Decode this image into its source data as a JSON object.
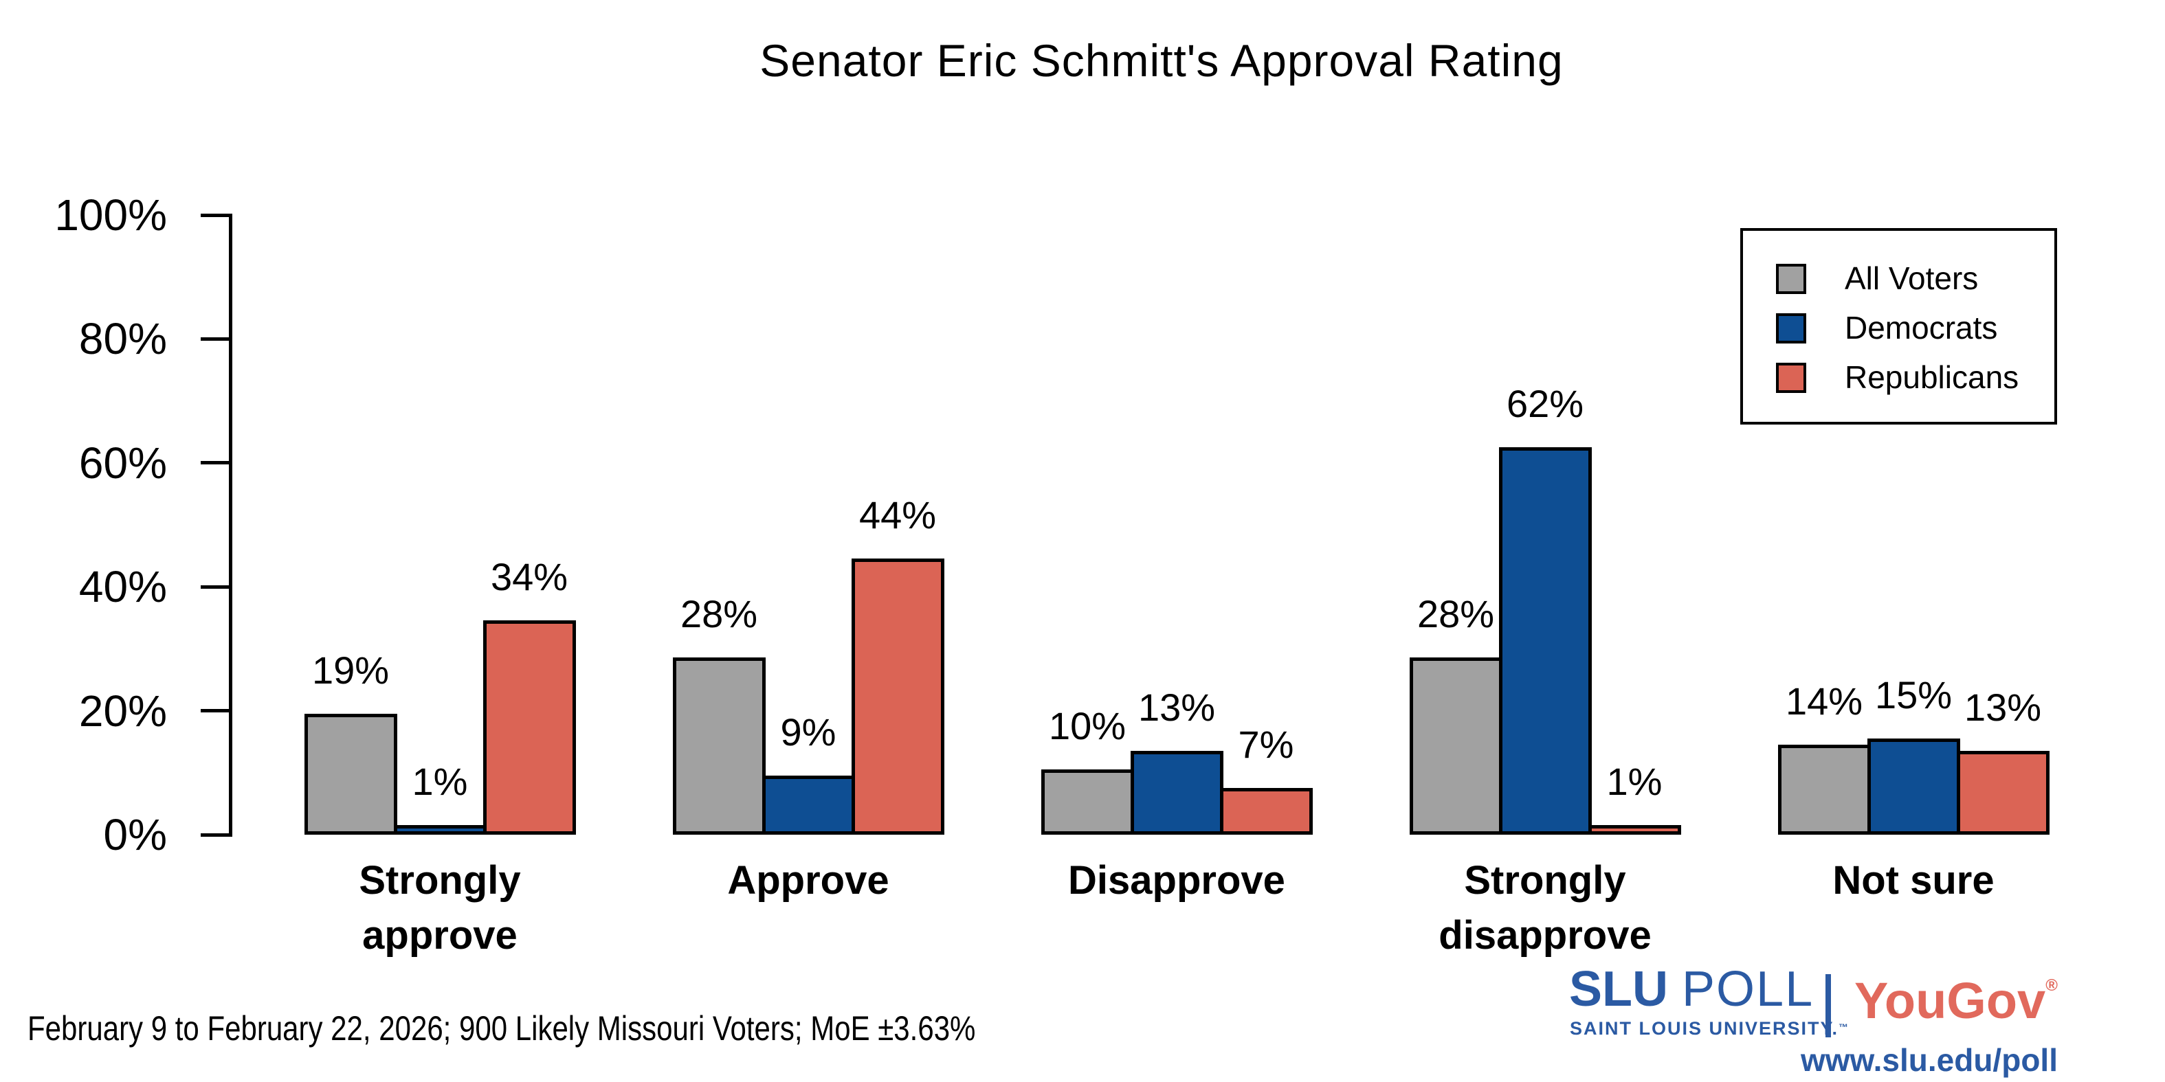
{
  "title": "Senator Eric Schmitt's Approval Rating",
  "chart_data": {
    "type": "bar",
    "title": "Senator Eric Schmitt's Approval Rating",
    "categories": [
      "Strongly approve",
      "Approve",
      "Disapprove",
      "Strongly disapprove",
      "Not sure"
    ],
    "category_display": [
      "Strongly\napprove",
      "Approve",
      "Disapprove",
      "Strongly\ndisapprove",
      "Not sure"
    ],
    "series": [
      {
        "name": "All Voters",
        "color": "#a1a1a1",
        "values": [
          19,
          28,
          10,
          28,
          14
        ]
      },
      {
        "name": "Democrats",
        "color": "#0e4e93",
        "values": [
          1,
          9,
          13,
          62,
          15
        ]
      },
      {
        "name": "Republicans",
        "color": "#db6455",
        "values": [
          34,
          44,
          7,
          1,
          13
        ]
      }
    ],
    "value_suffix": "%",
    "bar_labels": true,
    "ylim": [
      0,
      100
    ],
    "yticks": [
      0,
      20,
      40,
      60,
      80,
      100
    ],
    "ytick_suffix": "%",
    "grid": false,
    "legend_position": "upper right"
  },
  "footer": {
    "note": "February 9 to February 22, 2026; 900 Likely Missouri Voters; MoE ±3.63%"
  },
  "branding": {
    "slu": "SLU",
    "poll": "POLL",
    "slu_subtitle": "SAINT LOUIS UNIVERSITY.",
    "trademark": "™",
    "yougov": "YouGov",
    "registered": "®",
    "url": "www.slu.edu/poll",
    "slu_blue": "#2b5aa3",
    "yougov_red": "#e1695c"
  }
}
